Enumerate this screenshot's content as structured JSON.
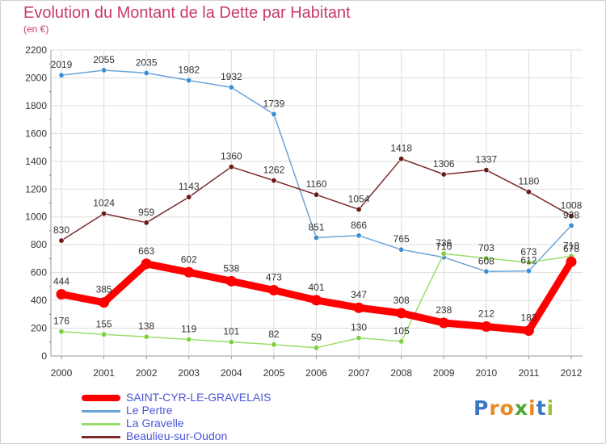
{
  "header": {
    "title": "Evolution du Montant de la Dette par Habitant",
    "unit": "(en €)"
  },
  "brand": {
    "letters": [
      "P",
      "r",
      "o",
      "x",
      "i",
      "t",
      "i"
    ],
    "colors": [
      "#3b78c4",
      "#e88a22",
      "#e88a22",
      "#4aa832",
      "#e88a22",
      "#3b78c4",
      "#9cc435"
    ]
  },
  "chart_data": {
    "type": "line",
    "title": "Evolution du Montant de la Dette par Habitant",
    "ylabel": "(en €)",
    "xlabel": "",
    "x": [
      "2000",
      "2001",
      "2002",
      "2003",
      "2004",
      "2005",
      "2006",
      "2007",
      "2008",
      "2009",
      "2010",
      "2011",
      "2012"
    ],
    "ylim": [
      0,
      2200
    ],
    "yticks": [
      0,
      200,
      400,
      600,
      800,
      1000,
      1200,
      1400,
      1600,
      1800,
      2000,
      2200
    ],
    "grid": true,
    "legend_position": "bottom-left",
    "series": [
      {
        "name": "Le Pertre",
        "color": "#6aa3d8",
        "marker": "#3c8fd3",
        "values": [
          2019,
          2055,
          2035,
          1982,
          1932,
          1739,
          851,
          866,
          765,
          710,
          608,
          612,
          938
        ],
        "labels": [
          "2019",
          "2055",
          "2035",
          "1982",
          "1932",
          "1739",
          "851",
          "866",
          "765",
          "710",
          "608",
          "612",
          "938"
        ]
      },
      {
        "name": "Beaulieu-sur-Oudon",
        "color": "#7a2a2a",
        "marker": "#6b1818",
        "values": [
          830,
          1024,
          959,
          1143,
          1360,
          1262,
          1160,
          1054,
          1418,
          1306,
          1337,
          1180,
          1008
        ],
        "labels": [
          "830",
          "1024",
          "959",
          "1143",
          "1360",
          "1262",
          "1160",
          "1054",
          "1418",
          "1306",
          "1337",
          "1180",
          "1008"
        ]
      },
      {
        "name": "La Gravelle",
        "color": "#9ade6c",
        "marker": "#7fcf3f",
        "values": [
          176,
          155,
          138,
          119,
          101,
          82,
          59,
          130,
          105,
          736,
          703,
          673,
          718
        ],
        "labels": [
          "176",
          "155",
          "138",
          "119",
          "101",
          "82",
          "59",
          "130",
          "105",
          "736",
          "703",
          "673",
          "718"
        ]
      },
      {
        "name": "SAINT-CYR-LE-GRAVELAIS",
        "color": "#ff0000",
        "marker": "#ff0000",
        "values": [
          444,
          385,
          663,
          602,
          538,
          473,
          401,
          347,
          308,
          238,
          212,
          183,
          678
        ],
        "labels": [
          "444",
          "385",
          "663",
          "602",
          "538",
          "473",
          "401",
          "347",
          "308",
          "238",
          "212",
          "183",
          "678"
        ]
      }
    ],
    "legend": [
      "SAINT-CYR-LE-GRAVELAIS",
      "Le Pertre",
      "La Gravelle",
      "Beaulieu-sur-Oudon"
    ]
  }
}
